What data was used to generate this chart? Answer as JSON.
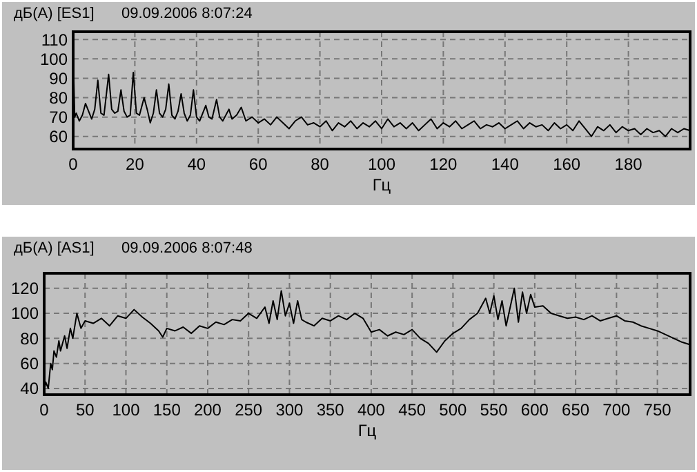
{
  "chart_data": [
    {
      "type": "line",
      "title": "дБ(А) [ES1]",
      "subtitle": "09.09.2006 8:07:24",
      "xlabel": "Гц",
      "xlim": [
        0,
        200
      ],
      "xticks": [
        0,
        20,
        40,
        60,
        80,
        100,
        120,
        140,
        160,
        180
      ],
      "ylim": [
        53.5,
        114
      ],
      "yticks": [
        60,
        70,
        80,
        90,
        100,
        110
      ],
      "grid": true,
      "series": [
        {
          "color": "#000000",
          "x": [
            0,
            0.5,
            1,
            2,
            3,
            4,
            5,
            6,
            7,
            8,
            9,
            10,
            11.5,
            12.5,
            13.5,
            14.5,
            15.5,
            16.5,
            17.5,
            18.5,
            19.5,
            20.5,
            21.5,
            23,
            24,
            25,
            26,
            27,
            28,
            29,
            30,
            31,
            32,
            33,
            34,
            35,
            36,
            37,
            38,
            39,
            40,
            41,
            42,
            43,
            44,
            45,
            46.5,
            47.5,
            48.5,
            50.5,
            51.5,
            53,
            54.5,
            56,
            58,
            60,
            62,
            64,
            66,
            68,
            70,
            72,
            74,
            76,
            78,
            80,
            82,
            84,
            86,
            88,
            90,
            92,
            94,
            96,
            98,
            100,
            102,
            104,
            106,
            108,
            110,
            112,
            114,
            116,
            118,
            120,
            122,
            124,
            126,
            128,
            130,
            132,
            134,
            136,
            138,
            140,
            142,
            144,
            146,
            148,
            150,
            152,
            154,
            156,
            158,
            160,
            162,
            164,
            166,
            168,
            170,
            172,
            174,
            176,
            178,
            180,
            182,
            184,
            186,
            188,
            190,
            192,
            194,
            196,
            198,
            200
          ],
          "values": [
            104,
            70,
            72,
            68,
            71,
            77,
            73,
            69,
            74,
            89,
            72,
            71,
            92,
            74,
            72,
            73,
            84,
            73,
            70,
            71,
            93,
            72,
            71,
            80,
            74,
            67,
            72,
            84,
            72,
            70,
            74,
            87,
            71,
            69,
            73,
            82,
            72,
            68,
            71,
            84,
            70,
            68,
            72,
            76,
            70,
            69,
            79,
            70,
            68,
            74,
            69,
            71,
            75,
            68,
            70,
            67,
            69,
            66,
            70,
            67,
            64,
            68,
            70,
            66,
            67,
            65,
            68,
            63,
            67,
            65,
            68,
            64,
            67,
            65,
            68,
            64,
            69,
            65,
            67,
            64,
            67,
            63,
            66,
            69,
            64,
            67,
            65,
            68,
            64,
            66,
            68,
            64,
            66,
            65,
            67,
            64,
            66,
            68,
            64,
            67,
            65,
            66,
            63,
            67,
            64,
            66,
            63,
            68,
            64,
            60,
            65,
            63,
            66,
            62,
            65,
            63,
            64,
            61,
            64,
            62,
            63,
            60,
            64,
            62,
            64,
            63
          ]
        }
      ]
    },
    {
      "type": "line",
      "title": "дБ(А) [AS1]",
      "subtitle": "09.09.2006 8:07:48",
      "xlabel": "Гц",
      "xlim": [
        0,
        790
      ],
      "xticks": [
        0,
        50,
        100,
        150,
        200,
        250,
        300,
        350,
        400,
        450,
        500,
        550,
        600,
        650,
        700,
        750
      ],
      "ylim": [
        35,
        132
      ],
      "yticks": [
        40,
        60,
        80,
        100,
        120
      ],
      "grid": true,
      "series": [
        {
          "color": "#000000",
          "x": [
            0,
            2,
            5,
            8,
            10,
            12,
            15,
            18,
            20,
            25,
            28,
            32,
            35,
            40,
            45,
            50,
            60,
            70,
            80,
            90,
            100,
            110,
            120,
            130,
            140,
            145,
            150,
            160,
            170,
            180,
            190,
            200,
            210,
            220,
            230,
            240,
            250,
            260,
            270,
            275,
            280,
            285,
            290,
            295,
            300,
            305,
            310,
            315,
            320,
            330,
            340,
            350,
            360,
            370,
            380,
            390,
            400,
            410,
            420,
            430,
            440,
            450,
            460,
            470,
            480,
            490,
            500,
            510,
            520,
            530,
            540,
            545,
            550,
            555,
            560,
            565,
            570,
            575,
            580,
            585,
            590,
            595,
            600,
            610,
            620,
            630,
            640,
            650,
            660,
            670,
            680,
            690,
            700,
            710,
            720,
            730,
            740,
            750,
            760,
            770,
            780,
            790
          ],
          "values": [
            38,
            45,
            40,
            60,
            55,
            70,
            65,
            78,
            70,
            82,
            72,
            88,
            80,
            100,
            88,
            94,
            92,
            96,
            90,
            98,
            96,
            103,
            97,
            92,
            86,
            81,
            88,
            86,
            89,
            84,
            90,
            88,
            93,
            91,
            95,
            94,
            100,
            96,
            105,
            92,
            110,
            95,
            118,
            98,
            108,
            92,
            110,
            95,
            93,
            90,
            96,
            94,
            98,
            95,
            100,
            96,
            85,
            87,
            82,
            85,
            83,
            87,
            80,
            76,
            69,
            78,
            84,
            88,
            95,
            100,
            112,
            100,
            114,
            95,
            110,
            90,
            105,
            120,
            93,
            117,
            100,
            115,
            105,
            106,
            100,
            98,
            96,
            97,
            95,
            98,
            94,
            96,
            98,
            94,
            93,
            90,
            88,
            86,
            83,
            80,
            77,
            75
          ]
        }
      ]
    }
  ]
}
